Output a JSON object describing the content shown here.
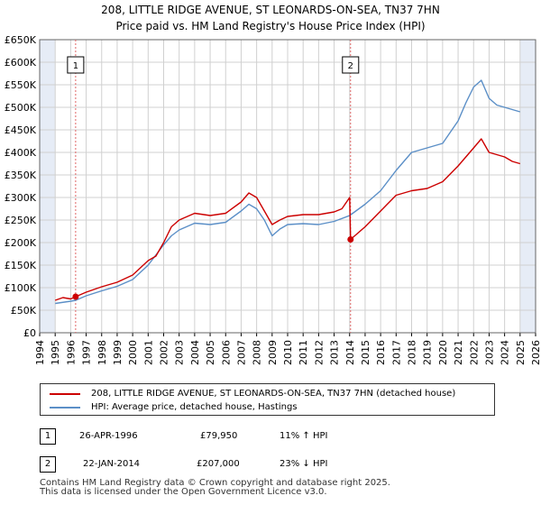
{
  "title": {
    "line1": "208, LITTLE RIDGE AVENUE, ST LEONARDS-ON-SEA, TN37 7HN",
    "line2": "Price paid vs. HM Land Registry's House Price Index (HPI)"
  },
  "colors": {
    "property": "#cc0000",
    "hpi": "#5b8fc7",
    "vline": "#e06666",
    "shade": "#e6ecf6",
    "grid": "#d0d0d0"
  },
  "chart_data": {
    "type": "line",
    "title": "Price paid vs. HM Land Registry's House Price Index (HPI)",
    "xlabel": "",
    "ylabel": "",
    "xlim": [
      1994,
      2026
    ],
    "ylim": [
      0,
      650000
    ],
    "y_ticks": [
      {
        "value": 0,
        "label": "£0"
      },
      {
        "value": 50000,
        "label": "£50K"
      },
      {
        "value": 100000,
        "label": "£100K"
      },
      {
        "value": 150000,
        "label": "£150K"
      },
      {
        "value": 200000,
        "label": "£200K"
      },
      {
        "value": 250000,
        "label": "£250K"
      },
      {
        "value": 300000,
        "label": "£300K"
      },
      {
        "value": 350000,
        "label": "£350K"
      },
      {
        "value": 400000,
        "label": "£400K"
      },
      {
        "value": 450000,
        "label": "£450K"
      },
      {
        "value": 500000,
        "label": "£500K"
      },
      {
        "value": 550000,
        "label": "£550K"
      },
      {
        "value": 600000,
        "label": "£600K"
      },
      {
        "value": 650000,
        "label": "£650K"
      }
    ],
    "x_ticks": [
      "1994",
      "1995",
      "1996",
      "1997",
      "1998",
      "1999",
      "2000",
      "2001",
      "2002",
      "2003",
      "2004",
      "2005",
      "2006",
      "2007",
      "2008",
      "2009",
      "2010",
      "2011",
      "2012",
      "2013",
      "2014",
      "2015",
      "2016",
      "2017",
      "2018",
      "2019",
      "2020",
      "2021",
      "2022",
      "2023",
      "2024",
      "2025",
      "2026"
    ],
    "shaded_ranges": [
      [
        1994,
        1995.0
      ],
      [
        2025.0,
        2026
      ]
    ],
    "series": [
      {
        "name": "208, LITTLE RIDGE AVENUE, ST LEONARDS-ON-SEA, TN37 7HN (detached house)",
        "x": [
          1995.0,
          1995.5,
          1996.0,
          1996.32,
          1997.0,
          1998.0,
          1999.0,
          2000.0,
          2001.0,
          2001.5,
          2002.0,
          2002.5,
          2003.0,
          2004.0,
          2005.0,
          2006.0,
          2007.0,
          2007.5,
          2008.0,
          2008.5,
          2009.0,
          2009.5,
          2010.0,
          2011.0,
          2012.0,
          2013.0,
          2013.5,
          2014.0,
          2014.06,
          2014.5,
          2015.0,
          2016.0,
          2017.0,
          2018.0,
          2019.0,
          2020.0,
          2021.0,
          2022.0,
          2022.5,
          2023.0,
          2023.5,
          2024.0,
          2024.5,
          2025.0
        ],
        "values": [
          72000,
          78000,
          75000,
          79950,
          90000,
          102000,
          112000,
          128000,
          160000,
          170000,
          200000,
          235000,
          250000,
          265000,
          260000,
          265000,
          290000,
          310000,
          300000,
          270000,
          240000,
          250000,
          258000,
          262000,
          262000,
          268000,
          275000,
          300000,
          207000,
          220000,
          235000,
          270000,
          305000,
          315000,
          320000,
          335000,
          370000,
          410000,
          430000,
          400000,
          395000,
          390000,
          380000,
          375000
        ]
      },
      {
        "name": "HPI: Average price, detached house, Hastings",
        "x": [
          1995.0,
          1996.0,
          1996.32,
          1997.0,
          1998.0,
          1999.0,
          2000.0,
          2001.0,
          2002.0,
          2002.5,
          2003.0,
          2004.0,
          2005.0,
          2006.0,
          2007.0,
          2007.5,
          2008.0,
          2008.5,
          2009.0,
          2009.5,
          2010.0,
          2011.0,
          2012.0,
          2013.0,
          2014.0,
          2015.0,
          2016.0,
          2017.0,
          2018.0,
          2019.0,
          2020.0,
          2021.0,
          2021.5,
          2022.0,
          2022.5,
          2023.0,
          2023.5,
          2024.0,
          2024.5,
          2025.0
        ],
        "values": [
          65000,
          70000,
          72000,
          82000,
          93000,
          103000,
          118000,
          150000,
          195000,
          215000,
          228000,
          243000,
          240000,
          245000,
          270000,
          285000,
          275000,
          250000,
          215000,
          230000,
          240000,
          242000,
          240000,
          247000,
          260000,
          285000,
          315000,
          360000,
          400000,
          410000,
          420000,
          470000,
          510000,
          545000,
          560000,
          520000,
          505000,
          500000,
          495000,
          490000
        ]
      }
    ],
    "annotations": [
      {
        "label": "1",
        "x": 1996.32,
        "y": 79950
      },
      {
        "label": "2",
        "x": 2014.06,
        "y": 207000
      }
    ]
  },
  "legend": {
    "property_label": "208, LITTLE RIDGE AVENUE, ST LEONARDS-ON-SEA, TN37 7HN (detached house)",
    "hpi_label": "HPI: Average price, detached house, Hastings"
  },
  "transactions": [
    {
      "badge": "1",
      "date": "26-APR-1996",
      "price": "£79,950",
      "change": "11% ↑ HPI"
    },
    {
      "badge": "2",
      "date": "22-JAN-2014",
      "price": "£207,000",
      "change": "23% ↓ HPI"
    }
  ],
  "footer": {
    "line1": "Contains HM Land Registry data © Crown copyright and database right 2025.",
    "line2": "This data is licensed under the Open Government Licence v3.0."
  }
}
